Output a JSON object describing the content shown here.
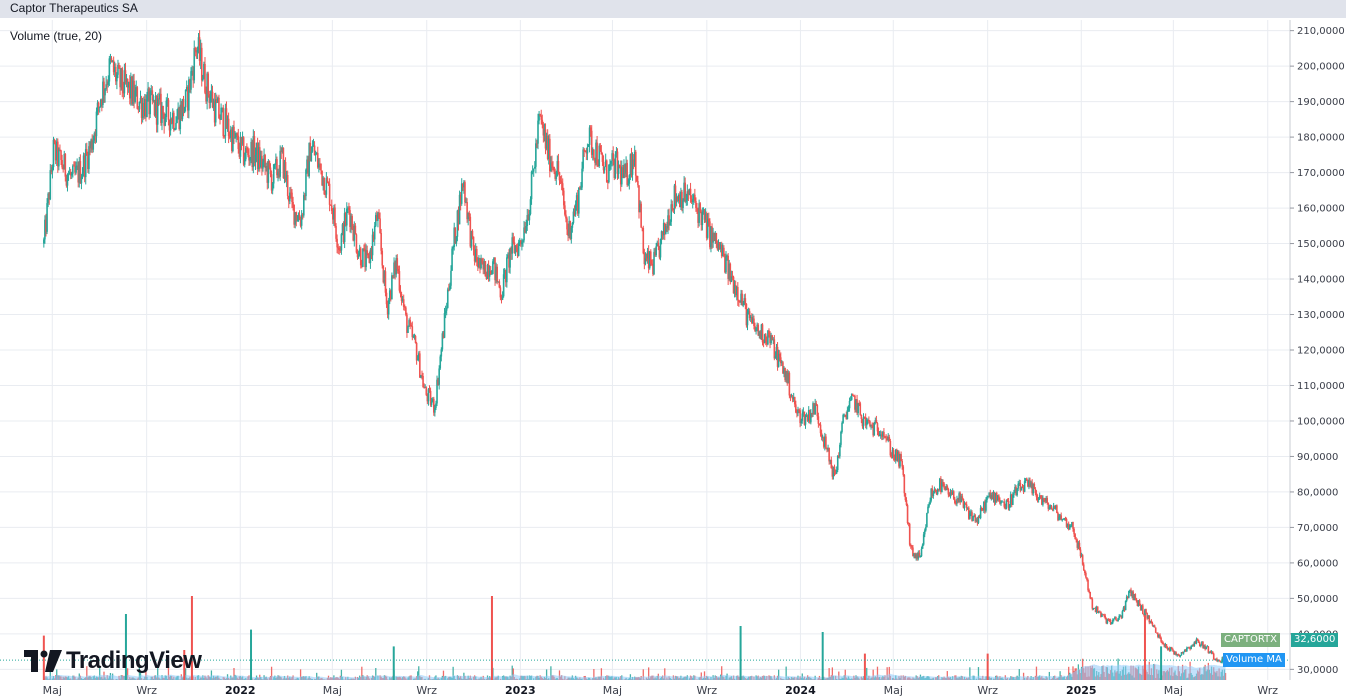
{
  "header": {
    "title": "Captor Therapeutics SA"
  },
  "indicator": {
    "label": "Volume (true, 20)"
  },
  "logo": {
    "text": "TradingView",
    "icon": "tradingview-logo-icon"
  },
  "badges": {
    "ticker": "CAPTORTX",
    "price": "32,6000",
    "volume_ma": "Volume MA"
  },
  "colors": {
    "up": "#26a69a",
    "down": "#ef5350",
    "volume_ma": "#90caf9",
    "grid": "#e9ecf1",
    "last_price_line": "#26a69a"
  },
  "chart_data": {
    "type": "line",
    "series": [
      {
        "values": [
          150,
          176,
          172,
          168,
          171,
          178,
          192,
          200,
          195,
          193,
          190,
          189,
          188,
          186,
          186,
          190,
          206,
          195,
          188,
          184,
          179,
          175,
          176,
          172,
          168,
          174,
          160,
          157,
          178,
          171,
          164,
          149,
          160,
          148,
          144,
          158,
          132,
          145,
          128,
          121,
          108,
          104,
          127,
          150,
          168,
          148,
          142,
          145,
          136,
          148,
          150,
          162,
          185,
          175,
          170,
          153,
          162,
          180,
          176,
          170,
          172,
          168,
          176,
          145,
          144,
          152,
          163,
          164,
          162,
          158,
          152,
          148,
          141,
          136,
          128,
          125,
          124,
          118,
          112,
          102,
          101,
          104,
          93,
          84,
          102,
          106,
          100,
          98,
          98,
          91,
          88,
          63,
          61,
          79,
          82,
          79,
          78,
          74,
          72,
          78,
          79,
          76,
          80,
          82,
          80,
          77,
          75,
          72,
          70,
          60,
          48,
          45,
          43,
          45,
          52,
          48,
          44,
          39,
          36,
          34,
          36,
          38,
          36,
          33,
          32.6
        ]
      }
    ],
    "x_range": [
      "2021-04-15",
      "2025-09-30"
    ],
    "x_ticks": [
      {
        "date": "2021-05-01",
        "label": "Maj",
        "major": false
      },
      {
        "date": "2021-09-01",
        "label": "Wrz",
        "major": false
      },
      {
        "date": "2022-01-01",
        "label": "2022",
        "major": true
      },
      {
        "date": "2022-05-01",
        "label": "Maj",
        "major": false
      },
      {
        "date": "2022-09-01",
        "label": "Wrz",
        "major": false
      },
      {
        "date": "2023-01-01",
        "label": "2023",
        "major": true
      },
      {
        "date": "2023-05-01",
        "label": "Maj",
        "major": false
      },
      {
        "date": "2023-09-01",
        "label": "Wrz",
        "major": false
      },
      {
        "date": "2024-01-01",
        "label": "2024",
        "major": true
      },
      {
        "date": "2024-05-01",
        "label": "Maj",
        "major": false
      },
      {
        "date": "2024-09-01",
        "label": "Wrz",
        "major": false
      },
      {
        "date": "2025-01-01",
        "label": "2025",
        "major": true
      },
      {
        "date": "2025-05-01",
        "label": "Maj",
        "major": false
      },
      {
        "date": "2025-09-01",
        "label": "Wrz",
        "major": false
      }
    ],
    "y_ticks": [
      "30,0000",
      "40,0000",
      "50,0000",
      "60,0000",
      "70,0000",
      "80,0000",
      "90,0000",
      "100,0000",
      "110,0000",
      "120,0000",
      "130,0000",
      "140,0000",
      "150,0000",
      "160,0000",
      "170,0000",
      "180,0000",
      "190,0000",
      "200,0000",
      "210,0000"
    ],
    "ylim": [
      27,
      213
    ],
    "grid": true,
    "last_price": 32.6,
    "volume": {
      "ylim": [
        0,
        100
      ],
      "spikes": [
        {
          "date": "2021-04-20",
          "value": 37,
          "up": false
        },
        {
          "date": "2021-08-05",
          "value": 55,
          "up": true
        },
        {
          "date": "2021-10-20",
          "value": 25,
          "up": false
        },
        {
          "date": "2021-10-30",
          "value": 70,
          "up": false
        },
        {
          "date": "2022-01-15",
          "value": 42,
          "up": true
        },
        {
          "date": "2022-07-20",
          "value": 28,
          "up": true
        },
        {
          "date": "2022-11-25",
          "value": 70,
          "up": false
        },
        {
          "date": "2023-10-15",
          "value": 45,
          "up": true
        },
        {
          "date": "2024-01-30",
          "value": 40,
          "up": true
        },
        {
          "date": "2024-03-25",
          "value": 22,
          "up": false
        },
        {
          "date": "2024-09-01",
          "value": 22,
          "up": false
        },
        {
          "date": "2025-03-25",
          "value": 58,
          "up": false
        },
        {
          "date": "2025-04-15",
          "value": 28,
          "up": true
        }
      ]
    }
  }
}
